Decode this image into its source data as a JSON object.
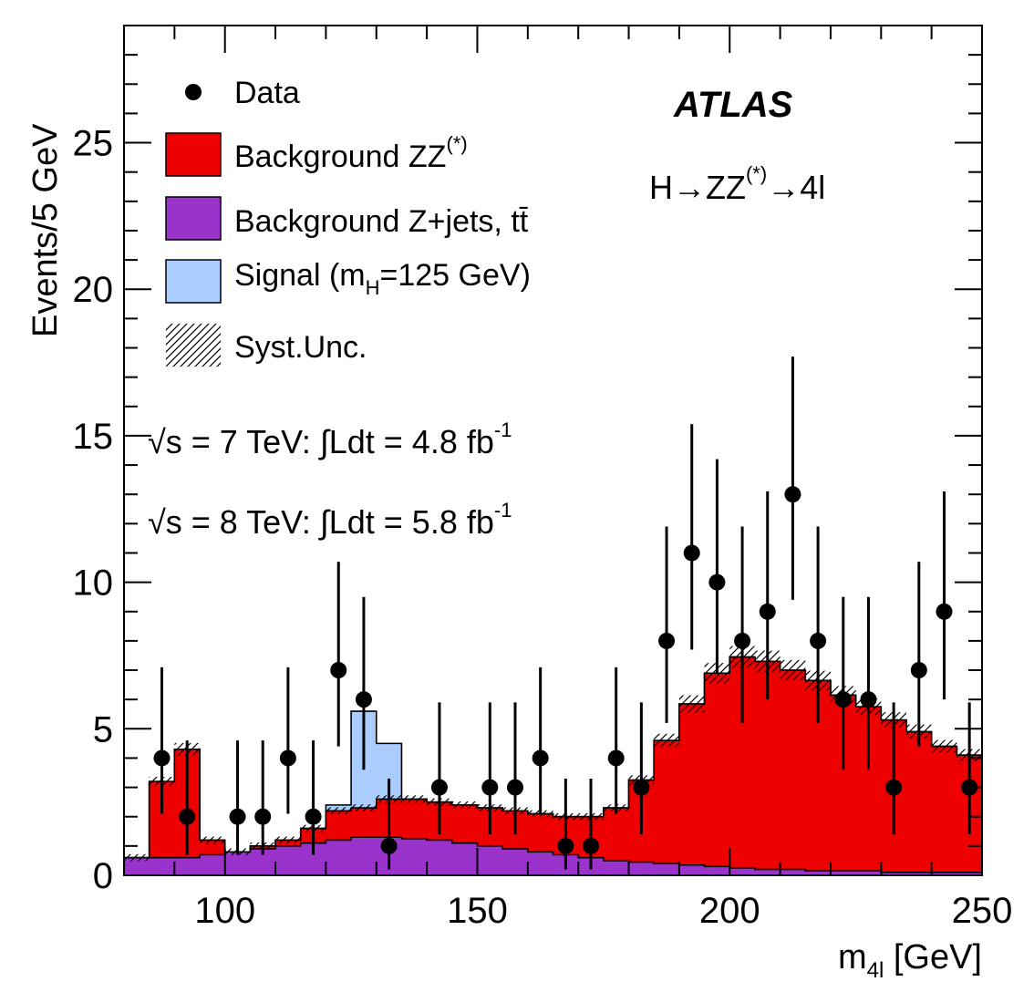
{
  "chart_data": {
    "type": "histogram",
    "xlabel_main": "m",
    "xlabel_sub": "4l",
    "xlabel_unit": " [GeV]",
    "ylabel": "Events/5 GeV",
    "xlim": [
      80,
      250
    ],
    "ylim": [
      0,
      29
    ],
    "x_ticks": [
      100,
      150,
      200,
      250
    ],
    "y_ticks": [
      0,
      5,
      10,
      15,
      20,
      25
    ],
    "bin_edges": [
      80,
      85,
      90,
      95,
      100,
      105,
      110,
      115,
      120,
      125,
      130,
      135,
      140,
      145,
      150,
      155,
      160,
      165,
      170,
      175,
      180,
      185,
      190,
      195,
      200,
      205,
      210,
      215,
      220,
      225,
      230,
      235,
      240,
      245,
      250
    ],
    "series": [
      {
        "name": "Background Z+jets, tt̄",
        "color": "#9933cc",
        "values": [
          0.6,
          0.6,
          0.6,
          0.7,
          0.8,
          0.9,
          1.0,
          1.1,
          1.2,
          1.3,
          1.3,
          1.25,
          1.2,
          1.1,
          1.0,
          0.9,
          0.8,
          0.7,
          0.6,
          0.5,
          0.45,
          0.4,
          0.35,
          0.3,
          0.25,
          0.2,
          0.2,
          0.15,
          0.15,
          0.15,
          0.1,
          0.1,
          0.1,
          0.1
        ]
      },
      {
        "name": "Background ZZ(*)",
        "color": "#ee0000",
        "values": [
          0.0,
          2.6,
          3.7,
          0.5,
          0.0,
          0.1,
          0.2,
          0.5,
          1.0,
          1.0,
          1.3,
          1.35,
          1.3,
          1.3,
          1.3,
          1.3,
          1.3,
          1.3,
          1.4,
          1.8,
          2.8,
          4.2,
          5.5,
          6.6,
          7.2,
          7.1,
          6.8,
          6.5,
          6.0,
          5.6,
          5.2,
          4.8,
          4.3,
          4.0
        ]
      },
      {
        "name": "Signal (mH=125 GeV)",
        "color": "#aaccff",
        "values": [
          0,
          0,
          0,
          0,
          0,
          0,
          0,
          0,
          0.2,
          3.3,
          1.9,
          0,
          0,
          0,
          0,
          0,
          0,
          0,
          0,
          0,
          0,
          0,
          0,
          0,
          0,
          0,
          0,
          0,
          0,
          0,
          0,
          0,
          0,
          0
        ]
      }
    ],
    "data_points": {
      "x": [
        87.5,
        92.5,
        102.5,
        107.5,
        112.5,
        117.5,
        122.5,
        127.5,
        132.5,
        142.5,
        152.5,
        157.5,
        162.5,
        167.5,
        172.5,
        177.5,
        182.5,
        187.5,
        192.5,
        197.5,
        202.5,
        207.5,
        212.5,
        217.5,
        222.5,
        227.5,
        232.5,
        237.5,
        242.5,
        247.5
      ],
      "y": [
        4,
        2,
        2,
        2,
        4,
        2,
        7,
        6,
        1,
        3,
        3,
        3,
        4,
        1,
        1,
        4,
        3,
        8,
        11,
        10,
        8,
        9,
        13,
        8,
        6,
        6,
        3,
        7,
        9,
        3
      ],
      "err_up": [
        3.1,
        2.6,
        2.6,
        2.6,
        3.1,
        2.6,
        3.7,
        3.5,
        2.3,
        2.9,
        2.9,
        2.9,
        3.1,
        2.3,
        2.3,
        3.1,
        2.9,
        3.9,
        4.4,
        4.2,
        3.9,
        4.1,
        4.7,
        3.9,
        3.5,
        3.5,
        2.9,
        3.7,
        4.1,
        2.9
      ],
      "err_down": [
        1.9,
        1.3,
        1.3,
        1.3,
        1.9,
        1.3,
        2.6,
        2.4,
        0.8,
        1.6,
        1.6,
        1.6,
        1.9,
        0.8,
        0.8,
        1.9,
        1.6,
        2.8,
        3.3,
        3.1,
        2.8,
        3.0,
        3.6,
        2.8,
        2.4,
        2.4,
        1.6,
        2.6,
        3.0,
        1.6
      ]
    },
    "legend": {
      "placement": "top-left",
      "entries": [
        {
          "key": "data",
          "label": "Data"
        },
        {
          "key": "zz",
          "label_main": "Background ZZ",
          "label_sup": "(*)",
          "color": "#ee0000"
        },
        {
          "key": "zjets",
          "label": "Background Z+jets, tt̄",
          "color": "#9933cc"
        },
        {
          "key": "signal",
          "label_main": "Signal (m",
          "label_sub": "H",
          "label_tail": "=125 GeV)",
          "color": "#aaccff"
        },
        {
          "key": "syst",
          "label": "Syst.Unc."
        }
      ]
    },
    "annotations": {
      "atlas": "ATLAS",
      "channel_main": "H→ZZ",
      "channel_sup": "(*)",
      "channel_tail": "→4l",
      "lumi_7_main": "√s = 7 TeV: ∫Ldt = 4.8 fb",
      "lumi_7_sup": "-1",
      "lumi_8_main": "√s = 8 TeV: ∫Ldt = 5.8 fb",
      "lumi_8_sup": "-1"
    },
    "grid": false
  }
}
